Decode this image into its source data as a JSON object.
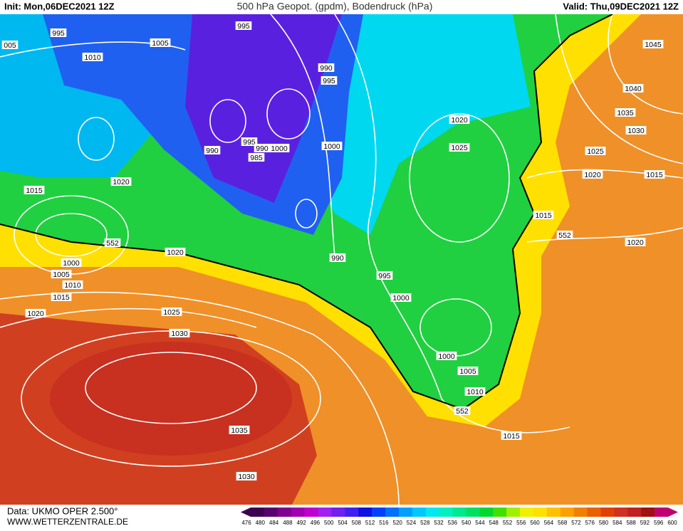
{
  "header": {
    "init": "Init: Mon,06DEC2021 12Z",
    "title": "500 hPa Geopot. (gpdm), Bodendruck (hPa)",
    "valid": "Valid: Thu,09DEC2021 12Z"
  },
  "isobar_labels": [
    "995",
    "1005",
    "995",
    "005",
    "1010",
    "990",
    "995",
    "1020",
    "995",
    "990",
    "990",
    "1000",
    "985",
    "1000",
    "1025",
    "1045",
    "1040",
    "1035",
    "1030",
    "1025",
    "1020",
    "1015",
    "1020",
    "1015",
    "552",
    "1020",
    "1015",
    "552",
    "1020",
    "1000",
    "1005",
    "1010",
    "1015",
    "1020",
    "990",
    "995",
    "1000",
    "1025",
    "1030",
    "1000",
    "1005",
    "1010",
    "552",
    "1015",
    "1035",
    "1030"
  ],
  "footer": {
    "data": "Data: UKMO OPER 2.500°",
    "site": "WWW.WETTERZENTRALE.DE"
  },
  "colorbar": {
    "labels": [
      476,
      480,
      484,
      488,
      492,
      496,
      500,
      504,
      508,
      512,
      516,
      520,
      524,
      528,
      532,
      536,
      540,
      544,
      548,
      552,
      556,
      560,
      564,
      568,
      572,
      576,
      580,
      584,
      588,
      592,
      596,
      600
    ],
    "colors": [
      "#3c0050",
      "#5a0070",
      "#800090",
      "#a000b0",
      "#c000d0",
      "#a020f0",
      "#7020f0",
      "#4020f0",
      "#1010e0",
      "#0040ff",
      "#0070ff",
      "#00a0ff",
      "#00c8ff",
      "#00e8f0",
      "#00f0c0",
      "#00e890",
      "#00e060",
      "#00d830",
      "#40e000",
      "#a0f000",
      "#f0f000",
      "#ffe000",
      "#ffc000",
      "#ffa000",
      "#f08000",
      "#e86000",
      "#e04000",
      "#d03020",
      "#c02020",
      "#a01010",
      "#c00070"
    ]
  }
}
